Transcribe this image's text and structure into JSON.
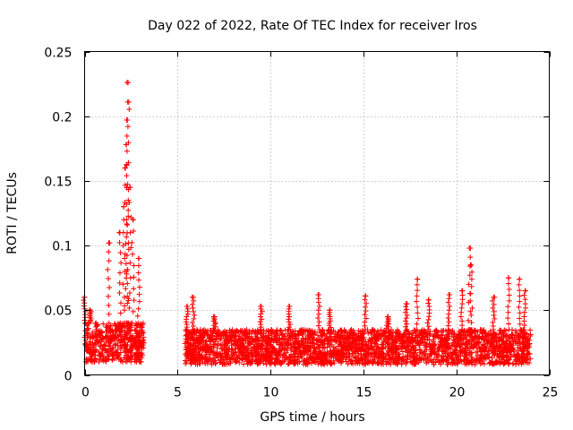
{
  "chart_data": {
    "type": "scatter",
    "title": "Day 022 of 2022, Rate Of TEC Index for receiver Iros",
    "xlabel": "GPS time / hours",
    "ylabel": "ROTI / TECUs",
    "xlim": [
      0,
      25
    ],
    "ylim": [
      0,
      0.25
    ],
    "x_ticks": [
      0,
      5,
      10,
      15,
      20,
      25
    ],
    "x_tick_labels": [
      "0",
      "5",
      "10",
      "15",
      "20",
      "25"
    ],
    "y_ticks": [
      0,
      0.05,
      0.1,
      0.15,
      0.2,
      0.25
    ],
    "y_tick_labels": [
      "0",
      "0.05",
      "0.1",
      "0.15",
      "0.2",
      "0.25"
    ],
    "grid": true,
    "marker": "+",
    "color": "#ff0000",
    "series": [
      {
        "name": "ROTI",
        "segments": [
          {
            "x_range": [
              0.0,
              3.2
            ],
            "typical": [
              0.01,
              0.04
            ]
          },
          {
            "x_range": [
              5.4,
              24.0
            ],
            "typical": [
              0.008,
              0.035
            ]
          }
        ],
        "peaks": [
          {
            "x": 0.0,
            "y": 0.06
          },
          {
            "x": 0.3,
            "y": 0.05
          },
          {
            "x": 1.3,
            "y": 0.102
          },
          {
            "x": 1.9,
            "y": 0.11
          },
          {
            "x": 2.1,
            "y": 0.13
          },
          {
            "x": 2.2,
            "y": 0.16
          },
          {
            "x": 2.25,
            "y": 0.178
          },
          {
            "x": 2.3,
            "y": 0.197
          },
          {
            "x": 2.32,
            "y": 0.211
          },
          {
            "x": 2.34,
            "y": 0.226
          },
          {
            "x": 2.45,
            "y": 0.145
          },
          {
            "x": 2.6,
            "y": 0.12
          },
          {
            "x": 2.9,
            "y": 0.09
          },
          {
            "x": 5.5,
            "y": 0.053
          },
          {
            "x": 5.85,
            "y": 0.06
          },
          {
            "x": 7.0,
            "y": 0.045
          },
          {
            "x": 9.5,
            "y": 0.053
          },
          {
            "x": 11.0,
            "y": 0.053
          },
          {
            "x": 12.6,
            "y": 0.062
          },
          {
            "x": 13.2,
            "y": 0.05
          },
          {
            "x": 15.1,
            "y": 0.061
          },
          {
            "x": 16.3,
            "y": 0.045
          },
          {
            "x": 17.3,
            "y": 0.055
          },
          {
            "x": 17.9,
            "y": 0.074
          },
          {
            "x": 18.5,
            "y": 0.058
          },
          {
            "x": 19.6,
            "y": 0.062
          },
          {
            "x": 20.3,
            "y": 0.065
          },
          {
            "x": 20.7,
            "y": 0.098
          },
          {
            "x": 20.8,
            "y": 0.085
          },
          {
            "x": 22.0,
            "y": 0.06
          },
          {
            "x": 22.8,
            "y": 0.075
          },
          {
            "x": 23.4,
            "y": 0.074
          },
          {
            "x": 23.7,
            "y": 0.065
          }
        ]
      }
    ]
  }
}
